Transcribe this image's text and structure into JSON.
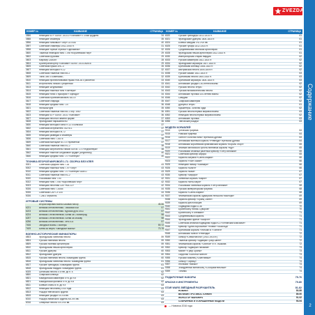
{
  "header": {
    "col1": "НОМЕР №",
    "col2": "НАЗВАНИЕ",
    "col3": "СТРАНИЦА"
  },
  "logo": {
    "text": "ZVEZDA"
  },
  "sidebar": {
    "title": "Содержание"
  },
  "legend": {
    "text": "— Новинка 2016 года"
  },
  "page_number": "2",
  "colors": {
    "blue": "#1b75bb",
    "red": "#e31e24",
    "highlight": "#dfeede",
    "navy": "#1d3a66"
  },
  "left_blocks": [
    {
      "type": "rows",
      "rows": [
        [
          "3586",
          "Немецкий БТР Sd.Kfz. 251/10 «Ханомаг» с 37мм орудием",
          "34"
        ],
        [
          "3588",
          "Немецкие снайперы",
          "35"
        ],
        [
          "3596",
          "Немецкий танковый «Тигр» LA700A",
          "40"
        ],
        [
          "3597",
          "Советские снайперы 1942-1945 гг.",
          "31"
        ],
        [
          "3598",
          "Немецкие горные стрелки «Эдельвейс»",
          "32"
        ],
        [
          "3600",
          "Тяжёлый немецкий танк Т-VIB «Королевский тигр»",
          "29"
        ],
        [
          "3602",
          "Советский грузовик",
          "29"
        ],
        [
          "3603",
          "Маульер LA500R",
          "28"
        ],
        [
          "3604",
          "Бронетранспортёр «Ханомаг» Sd.Kfz. 251/3 Ausf.B",
          "29"
        ],
        [
          "3605",
          "Советская пушка ЗИС-3",
          "26"
        ],
        [
          "3607",
          "Немецкий мотоцикл R-12",
          "32"
        ],
        [
          "3608",
          "Советский тяжёлый танк КВ-2",
          "31"
        ],
        [
          "3609",
          "Тягач ЗИЛ с советским...",
          "32"
        ],
        [
          "3610",
          "Немецкая противотанковая пушка РАК-36 с расчётом",
          "33"
        ],
        [
          "3611",
          "Истребитель танков с рефленом",
          "33"
        ],
        [
          "3613",
          "Немецкие штурмовики",
          "33"
        ],
        [
          "3614",
          "Немецкий тяжёлый танк «Пантера»",
          "34"
        ],
        [
          "3615",
          "Немецкий тягач с буксиром «Торнадо»",
          "34"
        ],
        [
          "3616",
          "Советский бронеавтомобиль БА-10",
          "34"
        ],
        [
          "3617",
          "Советские снаряды",
          "35"
        ],
        [
          "3618",
          "Немецкий средний танк Т-IV",
          "36"
        ],
        [
          "3621",
          "Фольксштурм",
          "35"
        ],
        [
          "3622",
          "Советский тяжёлый танк КВ-1 обр. 1940",
          "36"
        ],
        [
          "3623",
          "Немецкий БТР Sd.Kfz. 251/1 «Ханомаг»",
          "36"
        ],
        [
          "3627",
          "Немецкая пехота в зимней форме",
          "37"
        ],
        [
          "3628",
          "Французские парашютисты",
          "36"
        ],
        [
          "3630",
          "Немецкий мотоцикл BMW R-12 с коляской",
          "37"
        ],
        [
          "3632",
          "Советский истребитель ГАЗ М-1",
          "37"
        ],
        [
          "3634",
          "Немецкий мотоцикл М-72",
          "37"
        ],
        [
          "3635",
          "Немецкая разведка и снайперы",
          "37"
        ],
        [
          "3636",
          "Советский танк Т-34/76",
          "38"
        ],
        [
          "3639",
          "Советский мотоцикл М-72 с пулемётом",
          "37"
        ],
        [
          "3640",
          "Советский тяжёлый танк ИС-2",
          "38"
        ],
        [
          "3641",
          "Немецкий истребитель танков Sd.Kfz. 173 «Ягдпантера»",
          "38"
        ],
        [
          "3642",
          "Немецкое тяжёлое штурмовое орудие (штурмтигр)",
          "40"
        ],
        [
          "3646",
          "Немецкий средний танк Т-V «Пантера»",
          "40"
        ]
      ]
    },
    {
      "type": "section",
      "title": "ТЕХНИКА ВТОРОЙ МИРОВОЙ 1:72. СБОРКА БЕЗ КЛЕЯ",
      "page": ""
    },
    {
      "type": "rows",
      "rows": [
        [
          "5001",
          "Советский средний танк Т-34",
          "43"
        ],
        [
          "5002",
          "Немецкий тяжёлый танк Т-VI «Тигр»",
          "43"
        ],
        [
          "5010",
          "Немецкий средний танк Т-V «Пантера» Ausf D",
          "43"
        ],
        [
          "5011",
          "Советский тяжёлый танк ИС-2",
          "43"
        ],
        [
          "5020",
          "Российский танк Т-90",
          "42"
        ],
        [
          "5022",
          "Немецкий танк Т-VIB «Королевский тигр»",
          "42"
        ],
        [
          "5023",
          "Немецкая пехотная САУ «КВ-1С»",
          "42"
        ],
        [
          "5026",
          "Советский танк Т-34/85",
          "44"
        ],
        [
          "5026",
          "Советская САУ СУ-100",
          "44"
        ],
        [
          "5026",
          "Т-2601 Черчилль",
          "44"
        ]
      ]
    },
    {
      "type": "section",
      "title": "ИГРОВЫЕ СИСТЕМЫ",
      "page": ""
    },
    {
      "type": "rows",
      "hl": true,
      "rows": [
        [
          "",
          "Вторая мировая война Базовая набор",
          "45-56"
        ],
        [
          "6221",
          "Великая отечественная. Танковая бой",
          "57"
        ],
        [
          "6223",
          "Великая отечественная. Курская дуга 1943",
          "57"
        ],
        [
          "6224",
          "Великая Отечественная. Битва за Сталинград",
          "58"
        ],
        [
          "6257",
          "Великая Отечественная. Битва за Москву",
          "58"
        ],
        [
          "6256",
          "Великая отечественная. Лето 41г.",
          "57"
        ],
        [
          "7406",
          "Звёздные войны. Пионеры",
          "59-72"
        ],
        [
          "7409",
          "Битва за нефть «Звёздные войны»",
          "73-78"
        ]
      ]
    },
    {
      "type": "section",
      "title": "ВОЕННО-ИСТОРИЧЕСКИЕ МИНИАТЮРЫ",
      "page": ""
    },
    {
      "type": "rows",
      "rows": [
        [
          "6803",
          "Французская линейная пехота",
          "59"
        ],
        [
          "6804",
          "Русская линейная пехота",
          "59"
        ],
        [
          "6809",
          "Русская полевая артиллерия",
          "59"
        ],
        [
          "6810",
          "Французская пешая артиллерия",
          "60"
        ],
        [
          "6811",
          "Русские драгуны",
          "60"
        ],
        [
          "6812",
          "Французские драгуны",
          "60"
        ],
        [
          "6815",
          "Русская линейная пехота. Командная группа",
          "60"
        ],
        [
          "6816",
          "Французская линейная пехота. Командная группа",
          "61"
        ],
        [
          "6817",
          "Русские гренадеры. Командная группа",
          "61"
        ],
        [
          "6818",
          "Французская гвардия. Командная группа",
          "61"
        ],
        [
          "6025",
          "Греческая пехота V-IV вв. до н. э.",
          "62"
        ],
        [
          "6800",
          "Скифская конница",
          "62"
        ],
        [
          "6821",
          "Македонская кавалерия IV в. до н.э",
          "62"
        ],
        [
          "6821",
          "Македонская фаланга IV в. до н.э",
          "62"
        ],
        [
          "6811",
          "Боевые слоны III в. до н.э",
          "63"
        ],
        [
          "6812",
          "Немецкий пехотинец 1914 года",
          "63"
        ],
        [
          "6813",
          "Рыцари тевтонского ордена",
          "63"
        ],
        [
          "6815",
          "Немецкие рыцари XII-XIII вв.",
          "63"
        ],
        [
          "6010",
          "Рыцари ливонского ордена XIII-XIV вв.",
          "63"
        ],
        [
          "6016",
          "Северные пехота XVI-XVII вв.",
          "63"
        ]
      ]
    }
  ],
  "right_blocks": [
    {
      "type": "rows",
      "rows": [
        [
          "6020",
          "Русские гренадеры 1812-1814 гг.",
          "61"
        ],
        [
          "6021",
          "Французские драгуны 1805-1815 гг.",
          "61"
        ],
        [
          "6024",
          "Боевой самурай XVI-XVII вв.",
          "61"
        ],
        [
          "6025",
          "Русские гусары 1812-1814 гг.",
          "61"
        ],
        [
          "6026",
          "Средневековая японская артиллерия",
          "61"
        ],
        [
          "6028",
          "Французская пешая артиллерия 1812-1814 гг.",
          "61"
        ],
        [
          "6030",
          "Императорская старая гвардия",
          "62"
        ],
        [
          "6033",
          "Русская кавалерия 1812-1814 гг.",
          "62"
        ],
        [
          "6034",
          "Французские кирасиры 1807-1815 гг.",
          "62"
        ],
        [
          "6036",
          "Британская конница 1806-1815 гг.",
          "62"
        ],
        [
          "6037",
          "Австрийская пехота 1805-1809 гг.",
          "62"
        ],
        [
          "6038",
          "Русские казаки 1812-1814 гг.",
          "63"
        ],
        [
          "6039",
          "Британская пехота 1805-1815 гг.",
          "63"
        ],
        [
          "6040",
          "Британские кирасиры 1805-1815 гг.",
          "63"
        ],
        [
          "6041",
          "Английские рыцари 100-летней войны",
          "62"
        ],
        [
          "6042",
          "Русская пехота Петра I",
          "62"
        ],
        [
          "6043",
          "Русская вспомогательная пехота",
          "62"
        ],
        [
          "6044",
          "Английские лучники 100-летней войны",
          "62"
        ],
        [
          "6046",
          "Самураи",
          "62"
        ],
        [
          "6047",
          "Скифская кавалерия",
          "62"
        ],
        [
          "6048",
          "Драгуны Петра I",
          "61"
        ],
        [
          "6050",
          "Мушкетёры. Золотая орда",
          "62"
        ],
        [
          "6051",
          "Русская пехота первой мировой войны",
          "63"
        ],
        [
          "6052",
          "Немецкая пехота первой мировой войны",
          "62"
        ],
        [
          "6053",
          "Английские лучники",
          "63"
        ],
        [
          "6056",
          "Тевтонские рыцари",
          "63"
        ]
      ]
    },
    {
      "type": "section",
      "title": "МОДЕЛИ КОРАБЛЕЙ",
      "page": ""
    },
    {
      "type": "rows",
      "rows": [
        [
          "9014",
          "Греческая трирема",
          "64"
        ],
        [
          "9015",
          "Римская трирема",
          "64"
        ],
        [
          "9016",
          "Галеон «Золотая лань» Френсиса Дрейка",
          "64"
        ],
        [
          "9017",
          "Английский военный корабль «Ревендж» Френсиса Дрейка",
          "64"
        ],
        [
          "9018",
          "Английский королевский флагманский корабль «Король Георг»",
          "65"
        ],
        [
          "9019",
          "Флагман английского флота линейный корабль «Кур»",
          "65"
        ],
        [
          "9020",
          "Российский атомный ракетный крейсер «Пётр Великий»",
          "65"
        ],
        [
          "9021",
          "Советский крейсер Аврора",
          "65"
        ],
        [
          "9022",
          "Корабль колумба «Санта-Мария»",
          "66"
        ],
        [
          "9023",
          "Корабль «Уайт Лайон»",
          "66"
        ],
        [
          "9025",
          "Немецкий линкор «Бисмарк»",
          "66"
        ],
        [
          "9026",
          "Корабль «Биагл»",
          "66"
        ],
        [
          "9029",
          "Корабль «Ваза»",
          "67"
        ],
        [
          "9030",
          "Крейсер «Аврора»",
          "67"
        ],
        [
          "9031",
          "Линейный корабль «Варяг»",
          "67"
        ],
        [
          "9032",
          "Корабль «Вега-Кюри»",
          "67"
        ],
        [
          "9034",
          "Российский линейный корабль «Пётр Великий»",
          "68"
        ],
        [
          "9035",
          "Русская императорская трирема",
          "68"
        ],
        [
          "9036",
          "Корабль «Санта-Мария»",
          "68"
        ],
        [
          "9037",
          "Флагманский корабль Адмирала Нельсона «Виктори»",
          "69"
        ],
        [
          "9038",
          "Корабль крейсер «Принц Ойген»",
          "69"
        ],
        [
          "9039",
          "Корабль крестоносцев",
          "69"
        ],
        [
          "9040",
          "Подводная лодка U-38",
          "70"
        ],
        [
          "9041",
          "Броненосец «Князь Суворов»",
          "70"
        ],
        [
          "9042",
          "Броненосец «Потёмкин»",
          "71"
        ],
        [
          "9043",
          "Средневековый корабль",
          "71"
        ],
        [
          "9044",
          "Французский фрегат «Акорон»",
          "71"
        ],
        [
          "9045",
          "Советская атомная подводная лодка К-3 «Ленинский комсомол»",
          "71"
        ],
        [
          "9046",
          "Крейсер «Дина Воробьёва» «Новик» «Аскольд»",
          "71"
        ],
        [
          "9047",
          "Британский корабль «Уильям III «Тоннел»",
          "71"
        ],
        [
          "9048",
          "Английский галеон «Ревендж»",
          "72"
        ],
        [
          "9049",
          "Линкор «Севастополь» (1914-1915 гг.)",
          "72"
        ],
        [
          "9050",
          "Тяжёлый крейсер «Адмирал Граф Шпее»",
          "72"
        ],
        [
          "9051",
          "Флагманский корабль «Святой» Ф.Я. Ушакова",
          "72"
        ],
        [
          "9052",
          "Крейсер «Адмирал Нахимов»",
          "73"
        ],
        [
          "9053",
          "Мигант «Граф Оранж»",
          "73"
        ],
        [
          "9054",
          "Парусник «Золотой галеон»",
          "73"
        ],
        [
          "9055",
          "Русский эсминец «Сметливый»",
          "74"
        ],
        [
          "9056",
          "Линкор «Тирпиц»",
          "74"
        ],
        [
          "9057",
          "Японский «Мияко»",
          "74"
        ],
        [
          "9058",
          "Эскадренный миноносец «Сообразительный»",
          "74"
        ],
        [
          "9059",
          "Титаник",
          "74"
        ]
      ]
    },
    {
      "type": "section",
      "title": "ПОДАРОЧНЫЕ НАБОРЫ",
      "page": "75-76"
    },
    {
      "type": "section",
      "title": "КРАСКИ И ИНСТРУМЕНТЫ",
      "page": "79-80"
    },
    {
      "type": "section",
      "title": "STAR WARS ЗВЁЗДНЫЙ РАЗРУШИТЕЛЬ",
      "page": "81-82"
    },
    {
      "type": "rows",
      "bold": true,
      "rows": [
        [
          "",
          "НОВИКИ",
          "83-88"
        ],
        [
          "",
          "ВЕЛИКИЕ ПРОТИВОСТОЯНИЯ",
          "89-90"
        ],
        [
          "",
          "WORLD OF WARSHIPS",
          "91-92"
        ],
        [
          "",
          "СОБРАННЫЕ И ПОКРАШЕННЫЕ МОДЕЛИ",
          "93-94"
        ]
      ]
    }
  ]
}
